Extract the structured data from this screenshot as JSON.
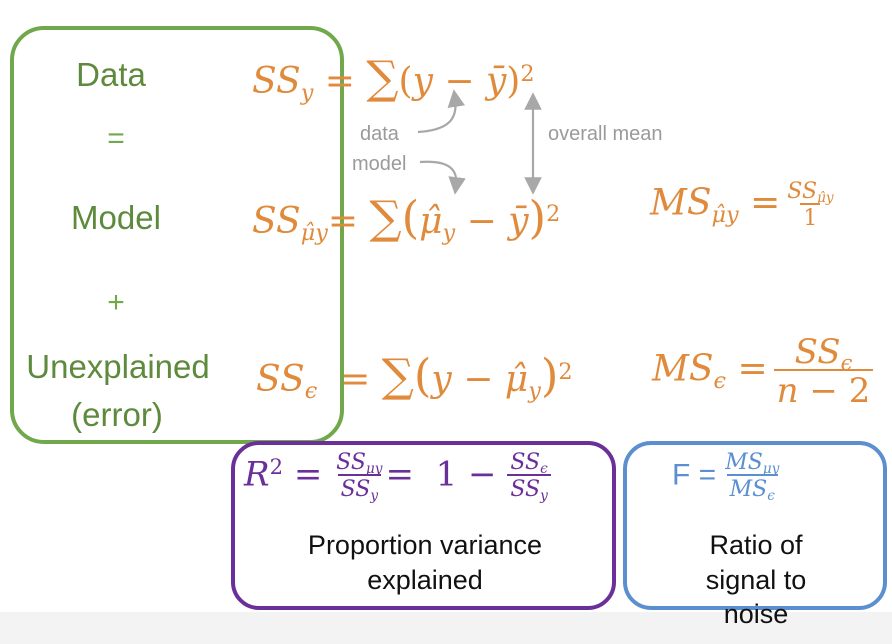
{
  "left_panel": {
    "data_label": "Data",
    "equals": "=",
    "model_label": "Model",
    "plus": "+",
    "unexplained_line1": "Unexplained",
    "unexplained_line2": "(error)"
  },
  "annotations": {
    "data": "data",
    "model": "model",
    "overall_mean": "overall mean"
  },
  "r2_box": {
    "caption_line1": "Proportion variance",
    "caption_line2": "explained"
  },
  "f_box": {
    "f_symbol": "F",
    "caption_line1": "Ratio of",
    "caption_line2": "signal to noise"
  },
  "colors": {
    "green": "#70a84b",
    "green_text": "#5d8a3c",
    "orange": "#e08a3c",
    "purple": "#6a2f99",
    "blue": "#5b8fd0",
    "gray": "#9a9a9a"
  }
}
